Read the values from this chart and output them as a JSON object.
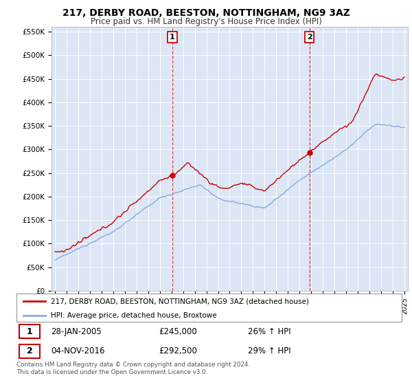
{
  "title": "217, DERBY ROAD, BEESTON, NOTTINGHAM, NG9 3AZ",
  "subtitle": "Price paid vs. HM Land Registry's House Price Index (HPI)",
  "ylabel_ticks": [
    "£0",
    "£50K",
    "£100K",
    "£150K",
    "£200K",
    "£250K",
    "£300K",
    "£350K",
    "£400K",
    "£450K",
    "£500K",
    "£550K"
  ],
  "ytick_values": [
    0,
    50000,
    100000,
    150000,
    200000,
    250000,
    300000,
    350000,
    400000,
    450000,
    500000,
    550000
  ],
  "ylim": [
    0,
    560000
  ],
  "xlim_start": 1994.7,
  "xlim_end": 2025.3,
  "sale1_date": 2005.08,
  "sale1_price": 245000,
  "sale1_label": "1",
  "sale2_date": 2016.84,
  "sale2_price": 292500,
  "sale2_label": "2",
  "legend_line1": "217, DERBY ROAD, BEESTON, NOTTINGHAM, NG9 3AZ (detached house)",
  "legend_line2": "HPI: Average price, detached house, Broxtowe",
  "annotation1_date": "28-JAN-2005",
  "annotation1_price": "£245,000",
  "annotation1_hpi": "26% ↑ HPI",
  "annotation2_date": "04-NOV-2016",
  "annotation2_price": "£292,500",
  "annotation2_hpi": "29% ↑ HPI",
  "footer": "Contains HM Land Registry data © Crown copyright and database right 2024.\nThis data is licensed under the Open Government Licence v3.0.",
  "line_color_property": "#cc0000",
  "line_color_hpi": "#88aadd",
  "background_color": "#ffffff",
  "plot_bg_color": "#dce6f5"
}
